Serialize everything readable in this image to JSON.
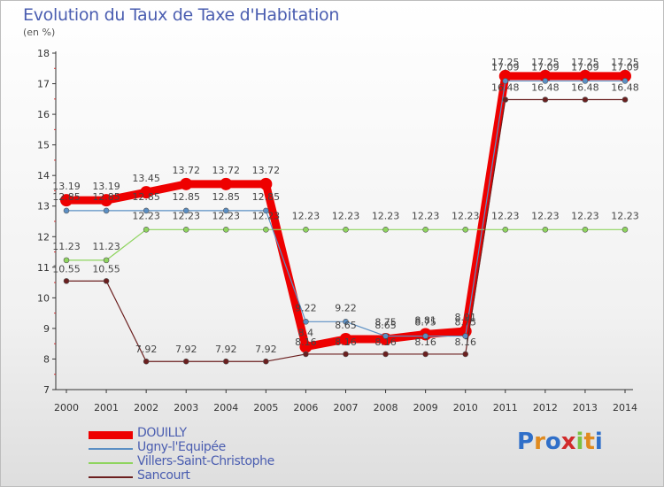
{
  "title": "Evolution du Taux de Taxe d'Habitation",
  "unit_label": "(en %)",
  "brand": {
    "letters": [
      "P",
      "r",
      "o",
      "x",
      "i",
      "t",
      "i"
    ],
    "colors": [
      "#2f6fc9",
      "#e08a1e",
      "#2f6fc9",
      "#d12b2b",
      "#7cc243",
      "#e08a1e",
      "#2f6fc9"
    ]
  },
  "chart_data": {
    "type": "line",
    "title": "Evolution du Taux de Taxe d'Habitation",
    "ylabel": "(en %)",
    "xlabel": "",
    "x": [
      "2000",
      "2001",
      "2002",
      "2003",
      "2004",
      "2005",
      "2006",
      "2007",
      "2008",
      "2009",
      "2010",
      "2011",
      "2012",
      "2013",
      "2014"
    ],
    "ylim": [
      7,
      18
    ],
    "yticks": [
      "7",
      "8",
      "9",
      "10",
      "11",
      "12",
      "13",
      "14",
      "15",
      "16",
      "17",
      "18"
    ],
    "grid": false,
    "legend_position": "bottom-left",
    "series": [
      {
        "name": "DOUILLY",
        "color": "#ee0000",
        "values": [
          13.19,
          13.19,
          13.45,
          13.72,
          13.72,
          13.72,
          8.4,
          8.65,
          8.65,
          8.81,
          8.91,
          17.25,
          17.25,
          17.25,
          17.25
        ],
        "labels": [
          "13.19",
          "13.19",
          "13.45",
          "13.72",
          "13.72",
          "13.72",
          "8.4",
          "8.65",
          "8.65",
          "8.81",
          "8.91",
          "17.25",
          "17.25",
          "17.25",
          "17.25"
        ]
      },
      {
        "name": "Ugny-l'Equipée",
        "color": "#5b8fc4",
        "values": [
          12.85,
          12.85,
          12.85,
          12.85,
          12.85,
          12.85,
          9.22,
          9.22,
          8.75,
          8.75,
          8.75,
          17.09,
          17.09,
          17.09,
          17.09
        ],
        "labels": [
          "12.85",
          "12.85",
          "12.85",
          "12.85",
          "12.85",
          "12.85",
          "9.22",
          "9.22",
          "8.75",
          "8.75",
          "8.75",
          "17.09",
          "17.09",
          "17.09",
          "17.09"
        ]
      },
      {
        "name": "Villers-Saint-Christophe",
        "color": "#8ed45e",
        "values": [
          11.23,
          11.23,
          12.23,
          12.23,
          12.23,
          12.23,
          12.23,
          12.23,
          12.23,
          12.23,
          12.23,
          12.23,
          12.23,
          12.23,
          12.23
        ],
        "labels": [
          "11.23",
          "11.23",
          "12.23",
          "12.23",
          "12.23",
          "12.23",
          "12.23",
          "12.23",
          "12.23",
          "12.23",
          "12.23",
          "12.23",
          "12.23",
          "12.23",
          "12.23"
        ]
      },
      {
        "name": "Sancourt",
        "color": "#6b1f1f",
        "values": [
          10.55,
          10.55,
          7.92,
          7.92,
          7.92,
          7.92,
          8.16,
          8.16,
          8.16,
          8.16,
          8.16,
          16.48,
          16.48,
          16.48,
          16.48
        ],
        "labels": [
          "10.55",
          "10.55",
          "7.92",
          "7.92",
          "7.92",
          "7.92",
          "8.16",
          "8.16",
          "8.16",
          "8.16",
          "8.16",
          "16.48",
          "16.48",
          "16.48",
          "16.48"
        ]
      }
    ]
  }
}
